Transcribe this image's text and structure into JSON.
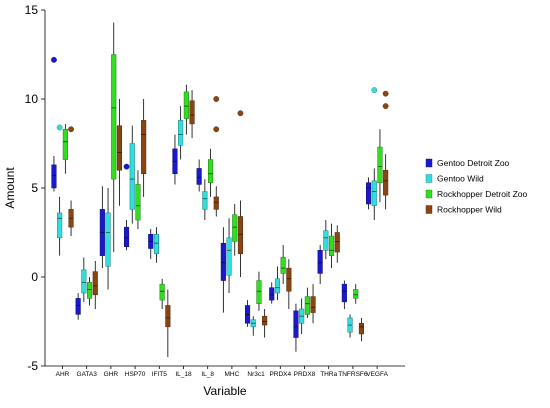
{
  "chart_data": {
    "type": "box",
    "xlabel": "Variable",
    "ylabel": "Amount",
    "ylim": [
      -5,
      15
    ],
    "yticks": [
      -5,
      0,
      5,
      10,
      15
    ],
    "grid": false,
    "legend_position": "right",
    "categories": [
      "AHR",
      "GATA3",
      "GHR",
      "HSP70",
      "IFIT5",
      "IL_18",
      "IL_8",
      "MHC",
      "Nr3c1",
      "PRDX4",
      "PRDX8",
      "THRa",
      "TNFRSF6",
      "VEGFA"
    ],
    "series": [
      {
        "name": "Gentoo Detroit Zoo",
        "color": "#1a1acc",
        "boxes": [
          {
            "whislo": 4.8,
            "q1": 5.0,
            "med": 5.7,
            "q3": 6.3,
            "whishi": 6.8,
            "outliers": [
              12.2
            ]
          },
          {
            "whislo": -2.4,
            "q1": -2.1,
            "med": -1.6,
            "q3": -1.2,
            "whishi": -0.9,
            "outliers": []
          },
          {
            "whislo": 0.5,
            "q1": 1.2,
            "med": 2.5,
            "q3": 3.8,
            "whishi": 5.1,
            "outliers": []
          },
          {
            "whislo": 1.5,
            "q1": 1.7,
            "med": 2.2,
            "q3": 2.8,
            "whishi": 3.2,
            "outliers": [
              6.2
            ]
          },
          {
            "whislo": 1.0,
            "q1": 1.6,
            "med": 2.0,
            "q3": 2.4,
            "whishi": 2.7,
            "outliers": []
          },
          {
            "whislo": 5.2,
            "q1": 5.8,
            "med": 6.5,
            "q3": 7.2,
            "whishi": 8.0,
            "outliers": []
          },
          {
            "whislo": 4.8,
            "q1": 5.2,
            "med": 5.6,
            "q3": 6.1,
            "whishi": 6.6,
            "outliers": []
          },
          {
            "whislo": -2.0,
            "q1": -0.2,
            "med": 0.8,
            "q3": 1.9,
            "whishi": 2.8,
            "outliers": []
          },
          {
            "whislo": -2.8,
            "q1": -2.6,
            "med": -2.1,
            "q3": -1.6,
            "whishi": -1.3,
            "outliers": []
          },
          {
            "whislo": -1.5,
            "q1": -1.3,
            "med": -1.0,
            "q3": -0.6,
            "whishi": -0.3,
            "outliers": []
          },
          {
            "whislo": -4.2,
            "q1": -3.4,
            "med": -2.8,
            "q3": -1.9,
            "whishi": -1.5,
            "outliers": []
          },
          {
            "whislo": -0.4,
            "q1": 0.2,
            "med": 0.8,
            "q3": 1.5,
            "whishi": 1.8,
            "outliers": []
          },
          {
            "whislo": -1.8,
            "q1": -1.4,
            "med": -0.8,
            "q3": -0.4,
            "whishi": -0.2,
            "outliers": []
          },
          {
            "whislo": 3.8,
            "q1": 4.1,
            "med": 5.0,
            "q3": 5.3,
            "whishi": 5.6,
            "outliers": []
          }
        ]
      },
      {
        "name": "Gentoo Wild",
        "color": "#33dddd",
        "boxes": [
          {
            "whislo": 1.2,
            "q1": 2.2,
            "med": 3.3,
            "q3": 3.6,
            "whishi": 4.5,
            "outliers": [
              8.4
            ]
          },
          {
            "whislo": -1.4,
            "q1": -0.9,
            "med": -0.3,
            "q3": 0.4,
            "whishi": 1.1,
            "outliers": []
          },
          {
            "whislo": -0.7,
            "q1": 0.6,
            "med": 2.5,
            "q3": 3.6,
            "whishi": 5.0,
            "outliers": []
          },
          {
            "whislo": 3.0,
            "q1": 3.8,
            "med": 5.5,
            "q3": 7.5,
            "whishi": 8.5,
            "outliers": []
          },
          {
            "whislo": 0.8,
            "q1": 1.3,
            "med": 1.9,
            "q3": 2.4,
            "whishi": 2.8,
            "outliers": []
          },
          {
            "whislo": 6.6,
            "q1": 7.4,
            "med": 8.0,
            "q3": 8.8,
            "whishi": 9.6,
            "outliers": []
          },
          {
            "whislo": 3.2,
            "q1": 3.8,
            "med": 4.4,
            "q3": 4.8,
            "whishi": 5.5,
            "outliers": []
          },
          {
            "whislo": -0.9,
            "q1": 0.1,
            "med": 1.5,
            "q3": 2.2,
            "whishi": 3.3,
            "outliers": []
          },
          {
            "whislo": -3.3,
            "q1": -2.8,
            "med": -2.6,
            "q3": -2.4,
            "whishi": -2.2,
            "outliers": []
          },
          {
            "whislo": -1.3,
            "q1": -0.9,
            "med": -0.6,
            "q3": -0.1,
            "whishi": 0.6,
            "outliers": []
          },
          {
            "whislo": -3.2,
            "q1": -2.6,
            "med": -2.2,
            "q3": -1.8,
            "whishi": -1.2,
            "outliers": []
          },
          {
            "whislo": 1.0,
            "q1": 1.5,
            "med": 2.2,
            "q3": 2.6,
            "whishi": 3.2,
            "outliers": []
          },
          {
            "whislo": -3.4,
            "q1": -3.1,
            "med": -2.7,
            "q3": -2.3,
            "whishi": -2.1,
            "outliers": []
          },
          {
            "whislo": 3.2,
            "q1": 4.0,
            "med": 4.8,
            "q3": 5.4,
            "whishi": 6.1,
            "outliers": [
              10.5
            ]
          }
        ]
      },
      {
        "name": "Rockhopper Detroit Zoo",
        "color": "#33dd22",
        "boxes": [
          {
            "whislo": 5.8,
            "q1": 6.6,
            "med": 7.6,
            "q3": 8.3,
            "whishi": 8.6,
            "outliers": []
          },
          {
            "whislo": -1.6,
            "q1": -1.2,
            "med": -0.7,
            "q3": -0.3,
            "whishi": 0.0,
            "outliers": []
          },
          {
            "whislo": 1.4,
            "q1": 5.5,
            "med": 9.5,
            "q3": 12.5,
            "whishi": 14.3,
            "outliers": []
          },
          {
            "whislo": 2.7,
            "q1": 3.2,
            "med": 4.0,
            "q3": 5.2,
            "whishi": 6.0,
            "outliers": []
          },
          {
            "whislo": -1.8,
            "q1": -1.3,
            "med": -0.8,
            "q3": -0.4,
            "whishi": -0.1,
            "outliers": []
          },
          {
            "whislo": 8.0,
            "q1": 8.9,
            "med": 9.6,
            "q3": 10.4,
            "whishi": 10.8,
            "outliers": []
          },
          {
            "whislo": 4.5,
            "q1": 5.3,
            "med": 5.8,
            "q3": 6.6,
            "whishi": 7.2,
            "outliers": []
          },
          {
            "whislo": 1.2,
            "q1": 2.0,
            "med": 2.8,
            "q3": 3.5,
            "whishi": 4.1,
            "outliers": []
          },
          {
            "whislo": -1.9,
            "q1": -1.5,
            "med": -0.8,
            "q3": -0.2,
            "whishi": 0.3,
            "outliers": []
          },
          {
            "whislo": -0.4,
            "q1": 0.2,
            "med": 0.5,
            "q3": 1.1,
            "whishi": 1.8,
            "outliers": []
          },
          {
            "whislo": -2.3,
            "q1": -2.1,
            "med": -1.5,
            "q3": -1.1,
            "whishi": -0.6,
            "outliers": []
          },
          {
            "whislo": 0.5,
            "q1": 1.2,
            "med": 1.5,
            "q3": 2.3,
            "whishi": 3.0,
            "outliers": []
          },
          {
            "whislo": -1.5,
            "q1": -1.2,
            "med": -1.0,
            "q3": -0.7,
            "whishi": -0.4,
            "outliers": []
          },
          {
            "whislo": 4.2,
            "q1": 5.3,
            "med": 6.2,
            "q3": 7.3,
            "whishi": 8.3,
            "outliers": []
          }
        ]
      },
      {
        "name": "Rockhopper Wild",
        "color": "#8b4513",
        "boxes": [
          {
            "whislo": 2.3,
            "q1": 2.8,
            "med": 3.3,
            "q3": 3.8,
            "whishi": 4.3,
            "outliers": [
              8.3
            ]
          },
          {
            "whislo": -1.8,
            "q1": -1.0,
            "med": -0.5,
            "q3": 0.3,
            "whishi": 0.9,
            "outliers": []
          },
          {
            "whislo": 4.0,
            "q1": 6.0,
            "med": 7.0,
            "q3": 8.5,
            "whishi": 10.0,
            "outliers": []
          },
          {
            "whislo": 4.5,
            "q1": 5.8,
            "med": 8.0,
            "q3": 8.8,
            "whishi": 10.0,
            "outliers": []
          },
          {
            "whislo": -4.5,
            "q1": -2.8,
            "med": -2.3,
            "q3": -1.6,
            "whishi": -0.7,
            "outliers": []
          },
          {
            "whislo": 7.8,
            "q1": 8.6,
            "med": 9.1,
            "q3": 9.9,
            "whishi": 10.5,
            "outliers": []
          },
          {
            "whislo": 3.4,
            "q1": 3.8,
            "med": 4.2,
            "q3": 4.5,
            "whishi": 5.1,
            "outliers": [
              8.3,
              10.0
            ]
          },
          {
            "whislo": 0.0,
            "q1": 1.3,
            "med": 2.4,
            "q3": 3.4,
            "whishi": 4.3,
            "outliers": [
              9.2
            ]
          },
          {
            "whislo": -3.4,
            "q1": -2.7,
            "med": -2.5,
            "q3": -2.2,
            "whishi": -1.8,
            "outliers": []
          },
          {
            "whislo": -1.8,
            "q1": -0.8,
            "med": -0.1,
            "q3": 0.5,
            "whishi": 1.0,
            "outliers": []
          },
          {
            "whislo": -2.6,
            "q1": -2.0,
            "med": -1.7,
            "q3": -1.1,
            "whishi": -0.4,
            "outliers": []
          },
          {
            "whislo": 0.8,
            "q1": 1.4,
            "med": 2.0,
            "q3": 2.5,
            "whishi": 2.9,
            "outliers": []
          },
          {
            "whislo": -3.6,
            "q1": -3.2,
            "med": -2.8,
            "q3": -2.6,
            "whishi": -2.3,
            "outliers": []
          },
          {
            "whislo": 3.8,
            "q1": 4.6,
            "med": 5.4,
            "q3": 6.0,
            "whishi": 6.9,
            "outliers": [
              9.6,
              10.3
            ]
          }
        ]
      }
    ]
  }
}
